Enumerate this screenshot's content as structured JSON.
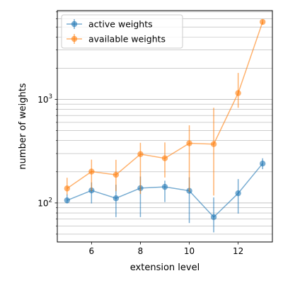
{
  "chart_data": {
    "type": "line",
    "xlabel": "extension level",
    "ylabel": "number of weights",
    "xlim": [
      4.6,
      13.4
    ],
    "ylim": [
      42,
      7200
    ],
    "yscale": "log",
    "x_ticks": [
      6,
      8,
      10,
      12
    ],
    "y_ticks": [
      {
        "value": 100,
        "base": "10",
        "exp": "2"
      },
      {
        "value": 1000,
        "base": "10",
        "exp": "3"
      }
    ],
    "grid": "horizontal minor and major",
    "legend_position": "top-left",
    "series": [
      {
        "name": "active weights",
        "color": "#1f77b4",
        "x": [
          5,
          6,
          7,
          8,
          9,
          10,
          11,
          12,
          13
        ],
        "y": [
          106,
          132,
          111,
          139,
          143,
          131,
          73,
          124,
          240
        ],
        "err_low": [
          99,
          99,
          73,
          73,
          102,
          64,
          52,
          79,
          212
        ],
        "err_high": [
          121,
          158,
          150,
          180,
          164,
          177,
          113,
          170,
          270
        ]
      },
      {
        "name": "available weights",
        "color": "#ff7f0e",
        "x": [
          5,
          6,
          7,
          8,
          9,
          10,
          11,
          12,
          13
        ],
        "y": [
          138,
          201,
          187,
          296,
          270,
          377,
          370,
          1150,
          5600
        ],
        "err_low": [
          120,
          130,
          130,
          122,
          176,
          128,
          118,
          830,
          5300
        ],
        "err_high": [
          175,
          262,
          261,
          381,
          384,
          562,
          830,
          1800,
          5900
        ]
      }
    ]
  }
}
